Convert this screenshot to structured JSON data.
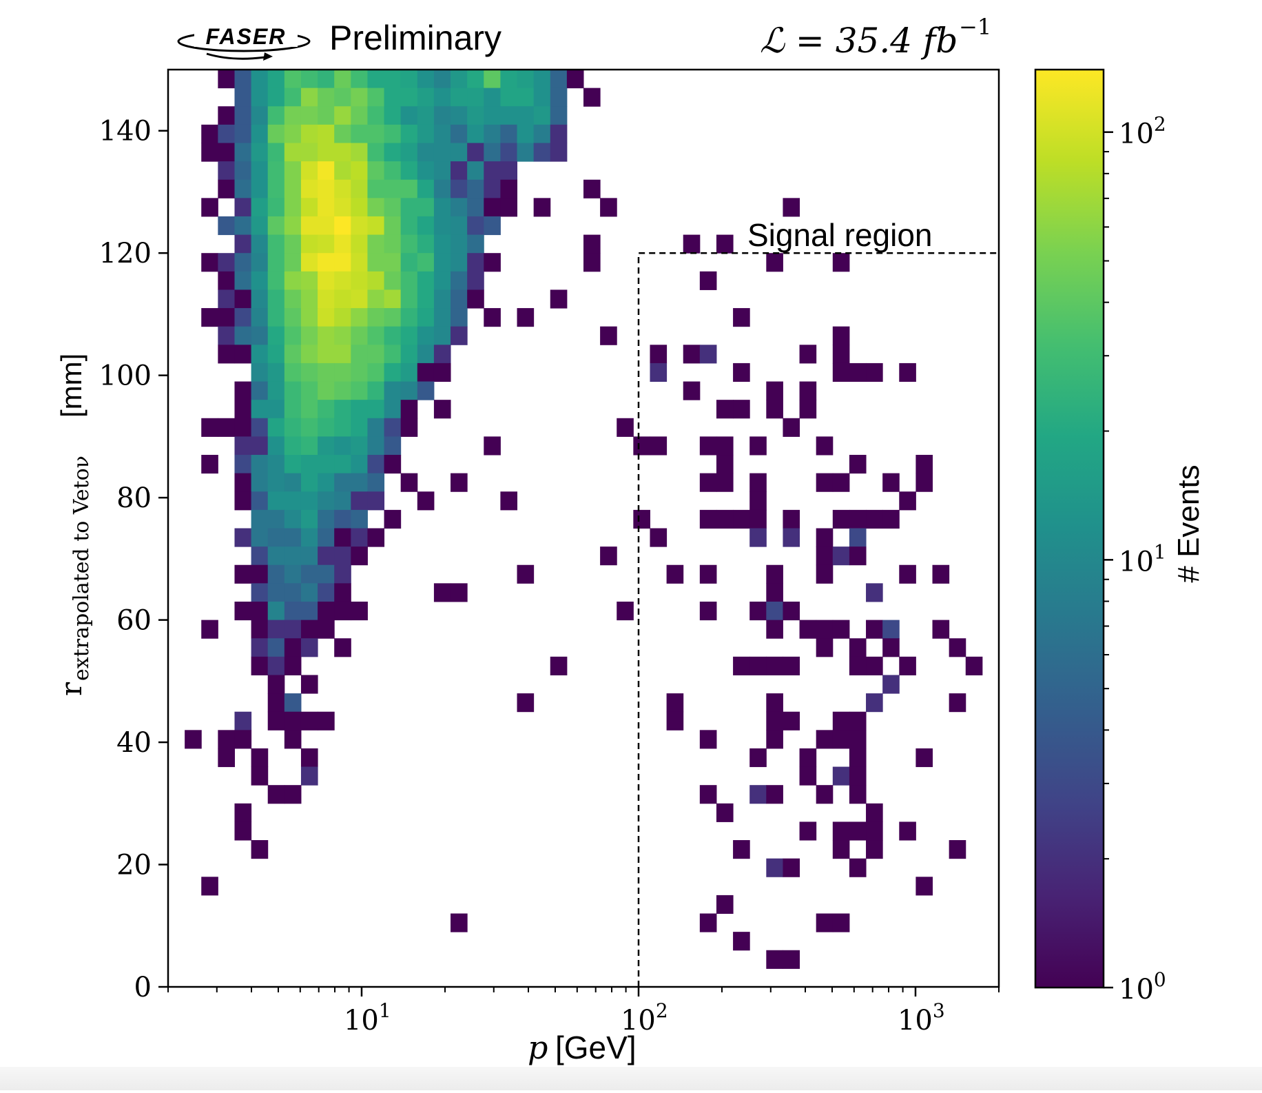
{
  "header": {
    "experiment_logo": "FASER",
    "status": "Preliminary",
    "luminosity_label": "ℒ = 35.4 fb",
    "luminosity_exponent": "−1"
  },
  "chart_data": {
    "type": "heatmap",
    "title": "",
    "xlabel": "p [GeV]",
    "xlabel_symbol": "p",
    "xlabel_unit": "[GeV]",
    "ylabel_main": "r",
    "ylabel_subscript": "extrapolated to Vetoν",
    "ylabel_unit": "[mm]",
    "xscale": "log",
    "xlim": [
      2,
      2000
    ],
    "ylim": [
      0,
      150
    ],
    "x_bins": 50,
    "y_bins": 50,
    "x_ticks": [
      {
        "value": 10,
        "label": "10",
        "exp": "1"
      },
      {
        "value": 100,
        "label": "10",
        "exp": "2"
      },
      {
        "value": 1000,
        "label": "10",
        "exp": "3"
      }
    ],
    "y_ticks": [
      0,
      20,
      40,
      60,
      80,
      100,
      120,
      140
    ],
    "colorbar": {
      "label": "# Events",
      "scale": "log",
      "range": [
        1,
        140
      ],
      "colormap": "viridis",
      "ticks": [
        {
          "value": 1,
          "label": "10",
          "exp": "0"
        },
        {
          "value": 10,
          "label": "10",
          "exp": "1"
        },
        {
          "value": 100,
          "label": "10",
          "exp": "2"
        }
      ]
    },
    "signal_region": {
      "label": "Signal region",
      "p_min": 100,
      "p_max": 2000,
      "r_min": 0,
      "r_max": 120,
      "style": "dashed"
    },
    "grid": false,
    "rows": [
      {
        "y_bin": 49,
        "cells": {
          "3": 1,
          "4": 4,
          "5": 12,
          "6": 18,
          "7": 35,
          "8": 30,
          "9": 25,
          "10": 45,
          "11": 30,
          "12": 20,
          "13": 20,
          "14": 18,
          "15": 12,
          "16": 9,
          "17": 14,
          "18": 20,
          "19": 40,
          "20": 18,
          "21": 16,
          "22": 12,
          "23": 5,
          "24": 1
        }
      },
      {
        "y_bin": 48,
        "cells": {
          "4": 4,
          "5": 12,
          "6": 18,
          "7": 30,
          "8": 60,
          "9": 45,
          "10": 40,
          "11": 50,
          "12": 35,
          "13": 20,
          "14": 20,
          "15": 16,
          "16": 12,
          "17": 16,
          "18": 16,
          "19": 12,
          "20": 18,
          "21": 18,
          "22": 12,
          "23": 5,
          "25": 1
        }
      },
      {
        "y_bin": 47,
        "cells": {
          "3": 1,
          "4": 4,
          "5": 10,
          "6": 30,
          "7": 50,
          "8": 50,
          "9": 45,
          "10": 65,
          "11": 45,
          "12": 30,
          "13": 20,
          "14": 12,
          "15": 14,
          "16": 9,
          "17": 10,
          "18": 14,
          "19": 12,
          "20": 12,
          "21": 12,
          "22": 14,
          "23": 5
        }
      },
      {
        "y_bin": 46,
        "cells": {
          "2": 1,
          "3": 3,
          "4": 4,
          "5": 12,
          "6": 45,
          "7": 55,
          "8": 75,
          "9": 80,
          "10": 45,
          "11": 35,
          "12": 35,
          "13": 30,
          "14": 20,
          "15": 14,
          "16": 10,
          "17": 6,
          "18": 12,
          "19": 8,
          "20": 5,
          "21": 12,
          "22": 8,
          "23": 2
        }
      },
      {
        "y_bin": 45,
        "cells": {
          "2": 1,
          "3": 1,
          "4": 6,
          "5": 14,
          "6": 28,
          "7": 70,
          "8": 70,
          "9": 80,
          "10": 80,
          "11": 70,
          "12": 30,
          "13": 20,
          "14": 16,
          "15": 10,
          "16": 10,
          "17": 10,
          "18": 2,
          "19": 6,
          "20": 3,
          "21": 8,
          "22": 3,
          "23": 2
        }
      },
      {
        "y_bin": 44,
        "cells": {
          "3": 2,
          "4": 5,
          "5": 12,
          "6": 30,
          "7": 55,
          "8": 100,
          "9": 130,
          "10": 75,
          "11": 85,
          "12": 40,
          "13": 30,
          "14": 20,
          "15": 12,
          "16": 10,
          "17": 2,
          "18": 9,
          "19": 2,
          "20": 2
        }
      },
      {
        "y_bin": 43,
        "cells": {
          "3": 1,
          "4": 6,
          "5": 12,
          "6": 30,
          "7": 55,
          "8": 110,
          "9": 120,
          "10": 100,
          "11": 80,
          "12": 35,
          "13": 35,
          "14": 35,
          "15": 18,
          "16": 8,
          "17": 3,
          "18": 5,
          "19": 2,
          "20": 1,
          "25": 1
        }
      },
      {
        "y_bin": 42,
        "cells": {
          "2": 1,
          "4": 2,
          "5": 16,
          "6": 28,
          "7": 55,
          "8": 90,
          "9": 120,
          "10": 105,
          "11": 85,
          "12": 50,
          "13": 40,
          "14": 25,
          "15": 25,
          "16": 11,
          "17": 8,
          "18": 5,
          "19": 1,
          "20": 1,
          "22": 1,
          "26": 1,
          "37": 1
        }
      },
      {
        "y_bin": 41,
        "cells": {
          "3": 4,
          "4": 6,
          "5": 14,
          "6": 40,
          "7": 60,
          "8": 115,
          "9": 115,
          "10": 140,
          "11": 100,
          "12": 90,
          "13": 45,
          "14": 25,
          "15": 18,
          "16": 11,
          "17": 10,
          "18": 3,
          "19": 4
        }
      },
      {
        "y_bin": 40,
        "cells": {
          "4": 2,
          "5": 10,
          "6": 30,
          "7": 45,
          "8": 90,
          "9": 95,
          "10": 120,
          "11": 90,
          "12": 50,
          "13": 45,
          "14": 30,
          "15": 22,
          "16": 12,
          "17": 10,
          "18": 6,
          "25": 1,
          "31": 1,
          "33": 1
        }
      },
      {
        "y_bin": 39,
        "cells": {
          "2": 1,
          "3": 2,
          "4": 5,
          "5": 9,
          "6": 30,
          "7": 45,
          "8": 110,
          "9": 130,
          "10": 130,
          "11": 95,
          "12": 50,
          "13": 50,
          "14": 25,
          "15": 30,
          "16": 12,
          "17": 10,
          "18": 2,
          "19": 1,
          "25": 1,
          "36": 1,
          "40": 1
        }
      },
      {
        "y_bin": 38,
        "cells": {
          "3": 1,
          "4": 6,
          "5": 12,
          "6": 30,
          "7": 60,
          "8": 65,
          "9": 110,
          "10": 100,
          "11": 90,
          "12": 80,
          "13": 45,
          "14": 30,
          "15": 20,
          "16": 12,
          "17": 6,
          "18": 2,
          "32": 1
        }
      },
      {
        "y_bin": 37,
        "cells": {
          "3": 2,
          "4": 1,
          "5": 10,
          "6": 25,
          "7": 45,
          "8": 60,
          "9": 100,
          "10": 90,
          "11": 95,
          "12": 60,
          "13": 70,
          "14": 30,
          "15": 20,
          "16": 10,
          "17": 5,
          "18": 1,
          "23": 1
        }
      },
      {
        "y_bin": 36,
        "cells": {
          "2": 1,
          "3": 1,
          "4": 3,
          "5": 9,
          "6": 25,
          "7": 40,
          "8": 60,
          "9": 95,
          "10": 80,
          "11": 60,
          "12": 45,
          "13": 40,
          "14": 25,
          "15": 18,
          "16": 10,
          "17": 5,
          "19": 1,
          "21": 1,
          "34": 1
        }
      },
      {
        "y_bin": 35,
        "cells": {
          "3": 2,
          "4": 6,
          "5": 7,
          "6": 20,
          "7": 35,
          "8": 50,
          "9": 65,
          "10": 60,
          "11": 45,
          "12": 35,
          "13": 25,
          "14": 20,
          "15": 12,
          "16": 10,
          "17": 2,
          "26": 1,
          "40": 1
        }
      },
      {
        "y_bin": 34,
        "cells": {
          "3": 1,
          "4": 1,
          "5": 12,
          "6": 18,
          "7": 40,
          "8": 55,
          "9": 65,
          "10": 65,
          "11": 40,
          "12": 40,
          "13": 30,
          "14": 18,
          "15": 10,
          "16": 2,
          "29": 1,
          "31": 1,
          "32": 2,
          "38": 1,
          "40": 1
        }
      },
      {
        "y_bin": 33,
        "cells": {
          "5": 10,
          "6": 14,
          "7": 35,
          "8": 40,
          "9": 45,
          "10": 45,
          "11": 40,
          "12": 35,
          "13": 20,
          "14": 15,
          "15": 1,
          "16": 1,
          "29": 2,
          "34": 1,
          "40": 1,
          "41": 1,
          "42": 1,
          "44": 1
        }
      },
      {
        "y_bin": 32,
        "cells": {
          "4": 1,
          "5": 6,
          "6": 14,
          "7": 28,
          "8": 35,
          "9": 45,
          "10": 40,
          "11": 35,
          "12": 25,
          "13": 10,
          "14": 9,
          "15": 4,
          "31": 1,
          "36": 1,
          "38": 1
        }
      },
      {
        "y_bin": 31,
        "cells": {
          "4": 1,
          "5": 12,
          "6": 12,
          "7": 28,
          "8": 35,
          "9": 28,
          "10": 22,
          "11": 18,
          "12": 18,
          "13": 10,
          "14": 1,
          "16": 1,
          "33": 1,
          "34": 1,
          "36": 1,
          "38": 1
        }
      },
      {
        "y_bin": 30,
        "cells": {
          "2": 1,
          "3": 1,
          "4": 1,
          "5": 3,
          "6": 18,
          "7": 25,
          "8": 30,
          "9": 25,
          "10": 22,
          "11": 18,
          "12": 8,
          "13": 3,
          "14": 1,
          "27": 1,
          "37": 1
        }
      },
      {
        "y_bin": 29,
        "cells": {
          "4": 2,
          "5": 2,
          "6": 12,
          "7": 22,
          "8": 25,
          "9": 14,
          "10": 12,
          "11": 14,
          "12": 8,
          "13": 4,
          "19": 1,
          "28": 1,
          "29": 1,
          "32": 1,
          "33": 1,
          "35": 1,
          "39": 1
        }
      },
      {
        "y_bin": 28,
        "cells": {
          "2": 1,
          "4": 3,
          "5": 8,
          "6": 10,
          "7": 18,
          "8": 16,
          "9": 16,
          "10": 16,
          "11": 12,
          "12": 3,
          "13": 1,
          "33": 1,
          "41": 1,
          "45": 1
        }
      },
      {
        "y_bin": 27,
        "cells": {
          "4": 1,
          "5": 8,
          "6": 10,
          "7": 9,
          "8": 16,
          "9": 12,
          "10": 7,
          "11": 7,
          "12": 5,
          "14": 1,
          "17": 1,
          "32": 1,
          "33": 1,
          "35": 1,
          "39": 1,
          "40": 1,
          "43": 1,
          "45": 1
        }
      },
      {
        "y_bin": 26,
        "cells": {
          "4": 1,
          "5": 4,
          "6": 12,
          "7": 12,
          "8": 12,
          "9": 9,
          "10": 8,
          "11": 2,
          "12": 2,
          "15": 1,
          "20": 1,
          "35": 1,
          "44": 1
        }
      },
      {
        "y_bin": 25,
        "cells": {
          "5": 7,
          "6": 7,
          "7": 10,
          "8": 14,
          "9": 6,
          "10": 4,
          "11": 5,
          "13": 1,
          "28": 1,
          "32": 1,
          "33": 1,
          "34": 1,
          "35": 1,
          "37": 1,
          "40": 1,
          "41": 1,
          "42": 1,
          "43": 1
        }
      },
      {
        "y_bin": 24,
        "cells": {
          "4": 2,
          "5": 7,
          "6": 6,
          "7": 6,
          "8": 10,
          "9": 5,
          "10": 1,
          "11": 2,
          "12": 1,
          "29": 1,
          "35": 2,
          "37": 2,
          "39": 1,
          "41": 3
        }
      },
      {
        "y_bin": 23,
        "cells": {
          "5": 3,
          "6": 8,
          "7": 8,
          "8": 8,
          "9": 2,
          "10": 2,
          "11": 1,
          "26": 1,
          "39": 1,
          "40": 2,
          "41": 1
        }
      },
      {
        "y_bin": 22,
        "cells": {
          "4": 1,
          "5": 1,
          "6": 5,
          "7": 7,
          "8": 5,
          "9": 5,
          "10": 2,
          "21": 1,
          "30": 1,
          "32": 1,
          "36": 1,
          "39": 1,
          "44": 1,
          "46": 1
        }
      },
      {
        "y_bin": 21,
        "cells": {
          "5": 3,
          "6": 5,
          "7": 5,
          "8": 7,
          "9": 3,
          "10": 1,
          "16": 1,
          "17": 1,
          "36": 1,
          "42": 2
        }
      },
      {
        "y_bin": 20,
        "cells": {
          "4": 1,
          "5": 1,
          "6": 9,
          "7": 4,
          "8": 4,
          "9": 1,
          "10": 1,
          "11": 1,
          "27": 1,
          "32": 1,
          "35": 1,
          "36": 3,
          "37": 1
        }
      },
      {
        "y_bin": 19,
        "cells": {
          "2": 1,
          "5": 1,
          "6": 2,
          "7": 2,
          "8": 1,
          "9": 1,
          "36": 1,
          "38": 1,
          "39": 1,
          "40": 1,
          "42": 1,
          "43": 3,
          "46": 1
        }
      },
      {
        "y_bin": 18,
        "cells": {
          "5": 2,
          "6": 4,
          "7": 1,
          "8": 2,
          "10": 1,
          "39": 1,
          "41": 1,
          "43": 1,
          "47": 1
        }
      },
      {
        "y_bin": 17,
        "cells": {
          "5": 1,
          "6": 2,
          "7": 1,
          "23": 1,
          "34": 1,
          "35": 1,
          "36": 1,
          "37": 1,
          "41": 1,
          "42": 1,
          "44": 1,
          "48": 1
        }
      },
      {
        "y_bin": 16,
        "cells": {
          "6": 1,
          "8": 1,
          "43": 2
        }
      },
      {
        "y_bin": 15,
        "cells": {
          "6": 1,
          "7": 4,
          "21": 1,
          "30": 1,
          "36": 1,
          "42": 2,
          "47": 1
        }
      },
      {
        "y_bin": 14,
        "cells": {
          "4": 2,
          "6": 1,
          "7": 1,
          "8": 1,
          "9": 1,
          "30": 1,
          "36": 1,
          "37": 1,
          "40": 1,
          "41": 1
        }
      },
      {
        "y_bin": 13,
        "cells": {
          "1": 1,
          "3": 1,
          "4": 1,
          "7": 1,
          "32": 1,
          "36": 1,
          "39": 1,
          "40": 1,
          "41": 1
        }
      },
      {
        "y_bin": 12,
        "cells": {
          "3": 1,
          "5": 1,
          "8": 1,
          "35": 1,
          "38": 1,
          "41": 1,
          "45": 1
        }
      },
      {
        "y_bin": 11,
        "cells": {
          "5": 1,
          "8": 2,
          "38": 1,
          "40": 2,
          "41": 1
        }
      },
      {
        "y_bin": 10,
        "cells": {
          "6": 1,
          "7": 1,
          "32": 1,
          "35": 2,
          "36": 1,
          "39": 1,
          "41": 1
        }
      },
      {
        "y_bin": 9,
        "cells": {
          "4": 1,
          "33": 1,
          "42": 1
        }
      },
      {
        "y_bin": 8,
        "cells": {
          "4": 1,
          "38": 1,
          "40": 1,
          "41": 1,
          "42": 1,
          "44": 1
        }
      },
      {
        "y_bin": 7,
        "cells": {
          "5": 1,
          "34": 1,
          "40": 1,
          "42": 1,
          "47": 1
        }
      },
      {
        "y_bin": 6,
        "cells": {
          "36": 2,
          "37": 1,
          "41": 1
        }
      },
      {
        "y_bin": 5,
        "cells": {
          "2": 1,
          "45": 1
        }
      },
      {
        "y_bin": 4,
        "cells": {
          "33": 1
        }
      },
      {
        "y_bin": 3,
        "cells": {
          "17": 1,
          "32": 1,
          "39": 1,
          "40": 1
        }
      },
      {
        "y_bin": 2,
        "cells": {
          "34": 1
        }
      },
      {
        "y_bin": 1,
        "cells": {
          "36": 1,
          "37": 1
        }
      }
    ]
  }
}
